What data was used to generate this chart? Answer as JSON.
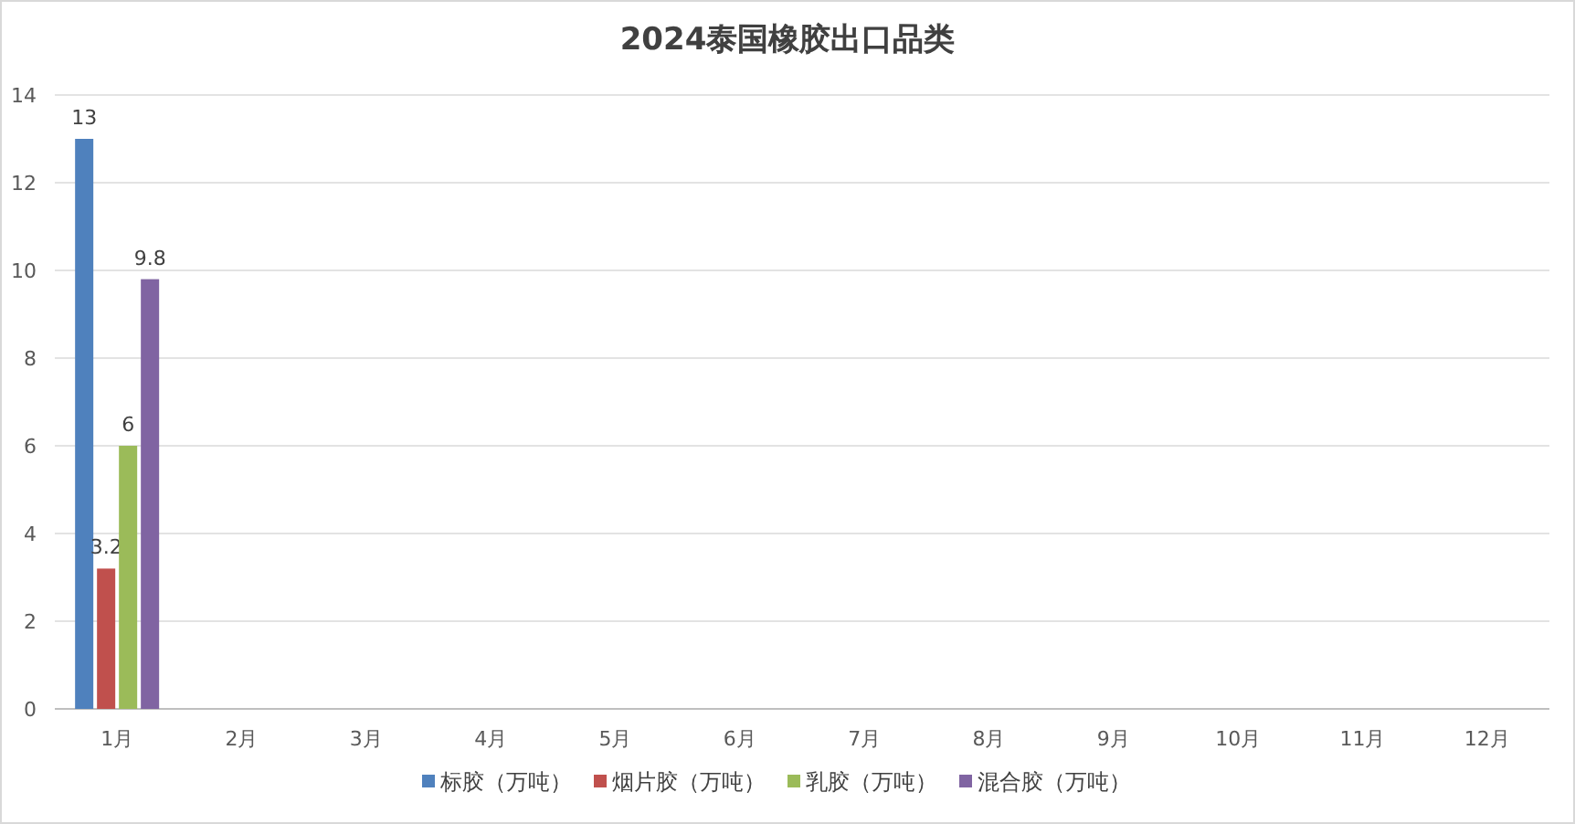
{
  "chart_data": {
    "type": "bar",
    "title": "2024泰国橡胶出口品类",
    "categories": [
      "1月",
      "2月",
      "3月",
      "4月",
      "5月",
      "6月",
      "7月",
      "8月",
      "9月",
      "10月",
      "11月",
      "12月"
    ],
    "series": [
      {
        "name": "标胶（万吨）",
        "color": "#4f81bd",
        "values": [
          13,
          null,
          null,
          null,
          null,
          null,
          null,
          null,
          null,
          null,
          null,
          null
        ]
      },
      {
        "name": "烟片胶（万吨）",
        "color": "#c0504d",
        "values": [
          3.2,
          null,
          null,
          null,
          null,
          null,
          null,
          null,
          null,
          null,
          null,
          null
        ]
      },
      {
        "name": "乳胶（万吨）",
        "color": "#9bbb59",
        "values": [
          6,
          null,
          null,
          null,
          null,
          null,
          null,
          null,
          null,
          null,
          null,
          null
        ]
      },
      {
        "name": "混合胶（万吨）",
        "color": "#8064a2",
        "values": [
          9.8,
          null,
          null,
          null,
          null,
          null,
          null,
          null,
          null,
          null,
          null,
          null
        ]
      }
    ],
    "ylim": [
      0,
      14
    ],
    "yticks": [
      0,
      2,
      4,
      6,
      8,
      10,
      12,
      14
    ],
    "grid": "y",
    "legend": "bottom",
    "data_labels": true
  }
}
